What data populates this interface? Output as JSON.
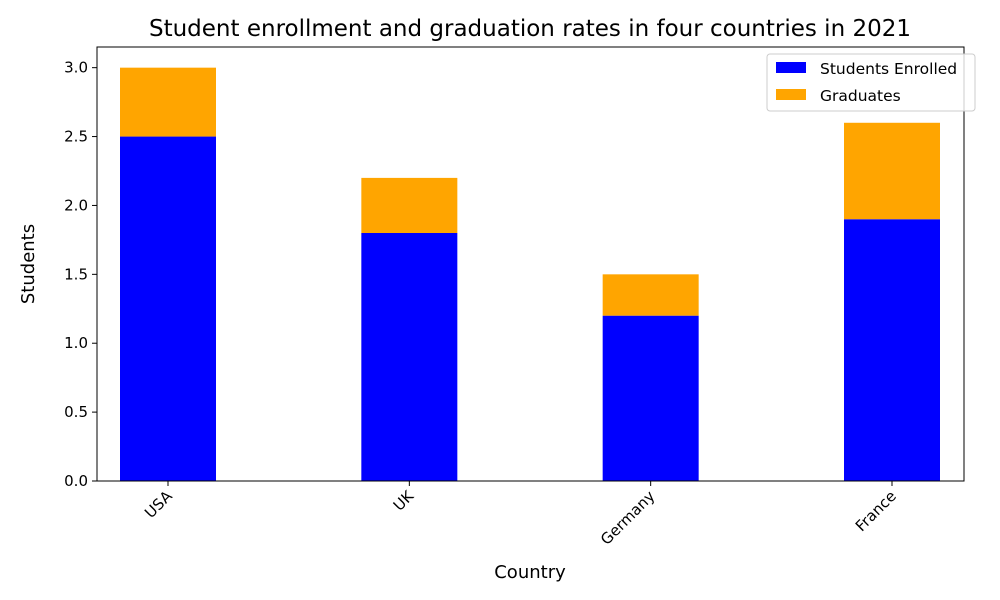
{
  "chart_data": {
    "type": "bar",
    "stacked": true,
    "title": "Student enrollment and graduation rates in four countries in 2021",
    "xlabel": "Country",
    "ylabel": "Students",
    "categories": [
      "USA",
      "UK",
      "Germany",
      "France"
    ],
    "series": [
      {
        "name": "Students Enrolled",
        "values": [
          2.5,
          1.8,
          1.2,
          1.9
        ],
        "color": "#0000ff"
      },
      {
        "name": "Graduates",
        "values": [
          0.5,
          0.4,
          0.3,
          0.7
        ],
        "color": "#ffa500"
      }
    ],
    "ylim": [
      0,
      3.15
    ],
    "yticks": [
      "0.0",
      "0.5",
      "1.0",
      "1.5",
      "2.0",
      "2.5",
      "3.0"
    ],
    "grid": false,
    "legend_position": "top-right"
  }
}
